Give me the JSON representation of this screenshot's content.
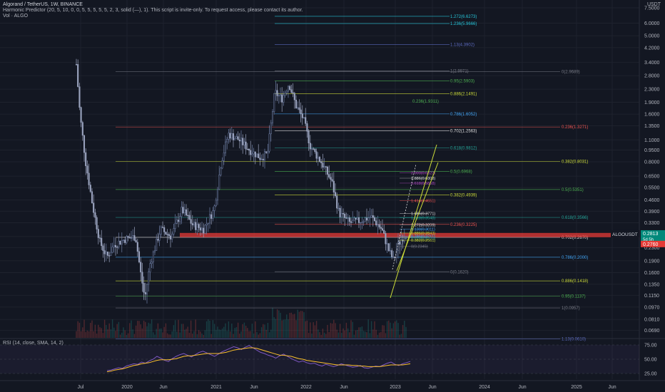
{
  "header": {
    "title": "Algorand / TetherUS, 1W, BINANCE",
    "indicator": "Harmonic Predictor (20, 5, 10, 0, 0, 5, 5, 5, 5, 5, 2, 3, solid (—), 1). This script is invite-only. To request access, please contact its author.",
    "volume": "Vol · ALGO"
  },
  "currency": "USDT",
  "rsi_label": "RSI (14, close, SMA, 14, 2)",
  "colors": {
    "background": "#131722",
    "grid": "#1e222d",
    "candle_up": "#6f7fa6",
    "candle_down": "#9ba4bf",
    "accent_red": "#e53935",
    "price_tag": "#00897b",
    "rsi_line": "#7e57c2",
    "rsi_ma": "#fbc02d",
    "channel": "#cddc39"
  },
  "chart_data": {
    "type": "candlestick",
    "symbol": "ALGOUSDT",
    "timeframe": "1W",
    "price_axis_log": true,
    "price_ticks": [
      "7.5000",
      "6.0000",
      "5.0000",
      "4.2000",
      "3.4000",
      "2.8000",
      "2.3000",
      "1.9000",
      "1.6000",
      "1.3500",
      "1.1000",
      "0.9500",
      "0.8000",
      "0.6500",
      "0.5500",
      "0.4600",
      "0.3900",
      "0.3300",
      "0.2700",
      "0.2300",
      "0.1900",
      "0.1600",
      "0.1350",
      "0.1150",
      "0.0970",
      "0.0810",
      "0.0690"
    ],
    "price_values": [
      7.5,
      6.0,
      5.0,
      4.2,
      3.4,
      2.8,
      2.3,
      1.9,
      1.6,
      1.35,
      1.1,
      0.95,
      0.8,
      0.65,
      0.55,
      0.46,
      0.39,
      0.33,
      0.27,
      0.23,
      0.19,
      0.16,
      0.135,
      0.115,
      0.097,
      0.081,
      0.069
    ],
    "ylim": [
      0.062,
      8.4
    ],
    "time_labels": [
      "Jul",
      "2020",
      "Jun",
      "2021",
      "Jun",
      "2022",
      "Jun",
      "2023",
      "Jun",
      "2024",
      "Jun",
      "2025",
      "Jun"
    ],
    "current_price": {
      "symbol": "ALGOUSDT",
      "value": "0.2813",
      "countdown": "5d 5h",
      "value_num": 0.2813
    },
    "red_level": {
      "value": "0.2760",
      "value_num": 0.276
    },
    "fib_levels_left": [
      {
        "label": "1.272(6.6273)",
        "value": 6.6273,
        "color": "#26c6da"
      },
      {
        "label": "1.236(5.9666)",
        "value": 5.9666,
        "color": "#26c6da"
      },
      {
        "label": "1.13(4.3902)",
        "value": 4.3902,
        "color": "#5c6bc0"
      },
      {
        "label": "1(2.9971)",
        "value": 2.9971,
        "color": "#787b86"
      },
      {
        "label": "0.95(2.5903)",
        "value": 2.5903,
        "color": "#4caf50"
      },
      {
        "label": "0.886(2.1491)",
        "value": 2.1491,
        "color": "#cddc39"
      },
      {
        "label": "0.786(1.6052)",
        "value": 1.6052,
        "color": "#42a5f5"
      },
      {
        "label": "0.702(1.2563)",
        "value": 1.2563,
        "color": "#e0e0e0"
      },
      {
        "label": "0.618(0.9812)",
        "value": 0.9812,
        "color": "#26a69a"
      },
      {
        "label": "0.5(0.6968)",
        "value": 0.6968,
        "color": "#4caf50"
      },
      {
        "label": "0.382(0.4939)",
        "value": 0.4939,
        "color": "#cddc39"
      },
      {
        "label": "0.236(0.3225)",
        "value": 0.3225,
        "color": "#ef5350"
      },
      {
        "label": "0(0.1620)",
        "value": 0.162,
        "color": "#787b86"
      }
    ],
    "fib_levels_right": [
      {
        "label": "0(2.9689)",
        "value": 2.9689,
        "color": "#787b86"
      },
      {
        "label": "0.236(1.3271)",
        "value": 1.3271,
        "color": "#ef5350"
      },
      {
        "label": "0.382(0.8031)",
        "value": 0.8031,
        "color": "#cddc39"
      },
      {
        "label": "0.5(0.5351)",
        "value": 0.5351,
        "color": "#4caf50"
      },
      {
        "label": "0.618(0.3566)",
        "value": 0.3566,
        "color": "#26a69a"
      },
      {
        "label": "0.702(0.2670)",
        "value": 0.267,
        "color": "#e0e0e0"
      },
      {
        "label": "0.786(0.2000)",
        "value": 0.2,
        "color": "#42a5f5"
      },
      {
        "label": "0.886(0.1418)",
        "value": 0.1418,
        "color": "#cddc39"
      },
      {
        "label": "0.95(0.1137)",
        "value": 0.1137,
        "color": "#4caf50"
      },
      {
        "label": "1(0.0957)",
        "value": 0.0957,
        "color": "#787b86"
      },
      {
        "label": "1.13(0.0610)",
        "value": 0.061,
        "color": "#5c6bc0"
      }
    ],
    "fib_mid_label": {
      "label": "0.236(1.9311)",
      "value": 1.9311,
      "color": "#4caf50"
    },
    "harmonic_labels": [
      {
        "label": "2.000(0.6823)",
        "value": 0.6823,
        "color": "#ab47bc"
      },
      {
        "label": "1.886(0.6308)",
        "value": 0.6308,
        "color": "#e0e0e0"
      },
      {
        "label": "1.618(0.5868)",
        "value": 0.5868,
        "color": "#ab47bc"
      },
      {
        "label": "1.414(0.4551)",
        "value": 0.4551,
        "color": "#ef5350"
      },
      {
        "label": "1.886(0.3771)",
        "value": 0.3771,
        "color": "#e0e0e0"
      },
      {
        "label": "1.618(0.3548)",
        "value": 0.3548,
        "color": "#26a69a"
      },
      {
        "label": "1.272(0.3209)",
        "value": 0.3209,
        "color": "#e0e0e0"
      },
      {
        "label": "1.130(0.3011)",
        "value": 0.3011,
        "color": "#42a5f5"
      },
      {
        "label": "0.886(0.2843)",
        "value": 0.2843,
        "color": "#cddc39"
      },
      {
        "label": "0.786(0.2711)",
        "value": 0.2711,
        "color": "#42a5f5"
      },
      {
        "label": "0.618(0.2651)",
        "value": 0.2651,
        "color": "#26a69a"
      },
      {
        "label": "0.382(0.2561)",
        "value": 0.2561,
        "color": "#cddc39"
      },
      {
        "label": "0(0.2345)",
        "value": 0.2345,
        "color": "#787b86"
      }
    ],
    "rsi_ticks": [
      "75.00",
      "50.00",
      "25.00"
    ],
    "rsi_tick_values": [
      75,
      50,
      25
    ],
    "rsi_values": [
      30,
      31,
      33,
      35,
      34,
      38,
      40,
      42,
      41,
      45,
      43,
      47,
      50,
      55,
      52,
      48,
      46,
      51,
      55,
      58,
      60,
      57,
      54,
      58,
      62,
      64,
      61,
      58,
      55,
      59,
      63,
      66,
      69,
      72,
      70,
      67,
      71,
      74,
      70,
      66,
      62,
      60,
      57,
      55,
      52,
      56,
      59,
      55,
      51,
      48,
      45,
      47,
      44,
      42,
      43,
      40,
      38,
      41,
      39,
      37,
      39,
      42,
      40,
      38,
      36,
      37,
      39,
      35,
      34,
      36,
      38,
      37,
      40,
      43,
      45,
      41,
      39,
      42,
      44,
      46
    ],
    "rsi_ma_values": [
      28,
      29,
      31,
      32,
      33,
      35,
      37,
      39,
      40,
      42,
      43,
      44,
      46,
      48,
      49,
      49,
      49,
      50,
      51,
      53,
      55,
      56,
      56,
      57,
      58,
      59,
      60,
      60,
      60,
      60,
      61,
      62,
      64,
      66,
      67,
      68,
      69,
      70,
      70,
      69,
      67,
      65,
      63,
      61,
      59,
      57,
      57,
      56,
      55,
      53,
      51,
      50,
      48,
      47,
      46,
      45,
      44,
      43,
      42,
      41,
      40,
      40,
      40,
      40,
      39,
      39,
      38,
      38,
      37,
      37,
      37,
      37,
      38,
      39,
      40,
      40,
      40,
      40,
      41,
      42
    ]
  }
}
